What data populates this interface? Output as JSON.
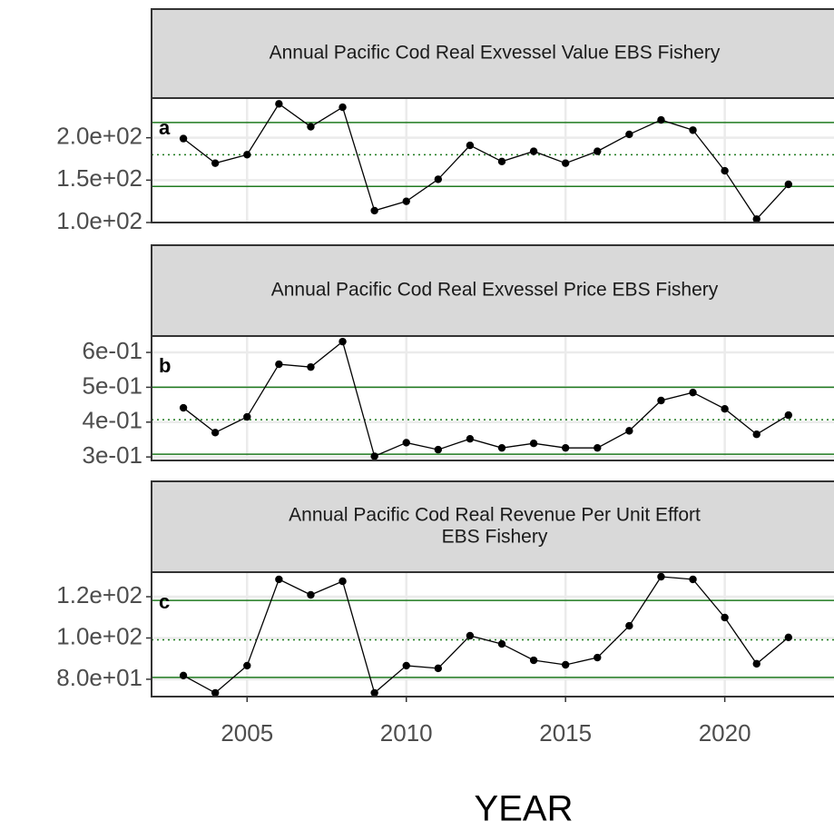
{
  "chart_data": [
    {
      "type": "line",
      "title": [
        "Annual Pacific Cod Real Exvessel Value EBS Fishery"
      ],
      "annotation": "a",
      "x": [
        2003,
        2004,
        2005,
        2006,
        2007,
        2008,
        2009,
        2010,
        2011,
        2012,
        2013,
        2014,
        2015,
        2016,
        2017,
        2018,
        2019,
        2020,
        2021,
        2022
      ],
      "series": [
        {
          "color": "#000000",
          "values": [
            199,
            170,
            180,
            240,
            213,
            236,
            114,
            125,
            151,
            191,
            172,
            184,
            170,
            184,
            204,
            221,
            209,
            161,
            104,
            145
          ]
        }
      ],
      "reference_lines": [
        {
          "value": 218,
          "style": "solid",
          "color": "#1f7a1f"
        },
        {
          "value": 142.6,
          "style": "solid",
          "color": "#1f7a1f"
        },
        {
          "value": 180,
          "style": "dotted",
          "color": "#1f7a1f"
        }
      ],
      "xlim": [
        2002,
        2023.43
      ],
      "xticks": [
        2005,
        2010,
        2015,
        2020
      ],
      "ylim": [
        100,
        246.8
      ],
      "yticks": [
        {
          "value": 100,
          "label": "1.0e+02"
        },
        {
          "value": 150,
          "label": "1.5e+02"
        },
        {
          "value": 200,
          "label": "2.0e+02"
        }
      ],
      "grid": true
    },
    {
      "type": "line",
      "title": [
        "Annual Pacific Cod Real Exvessel Price EBS Fishery"
      ],
      "annotation": "b",
      "x": [
        2003,
        2004,
        2005,
        2006,
        2007,
        2008,
        2009,
        2010,
        2011,
        2012,
        2013,
        2014,
        2015,
        2016,
        2017,
        2018,
        2019,
        2020,
        2021,
        2022
      ],
      "series": [
        {
          "color": "#000000",
          "values": [
            0.441,
            0.37,
            0.415,
            0.566,
            0.558,
            0.631,
            0.302,
            0.341,
            0.321,
            0.352,
            0.326,
            0.339,
            0.326,
            0.326,
            0.375,
            0.462,
            0.485,
            0.438,
            0.365,
            0.42
          ]
        }
      ],
      "reference_lines": [
        {
          "value": 0.5,
          "style": "solid",
          "color": "#1f7a1f"
        },
        {
          "value": 0.308,
          "style": "solid",
          "color": "#1f7a1f"
        },
        {
          "value": 0.407,
          "style": "dotted",
          "color": "#1f7a1f"
        }
      ],
      "xlim": [
        2002,
        2023.43
      ],
      "xticks": [
        2005,
        2010,
        2015,
        2020
      ],
      "ylim": [
        0.29,
        0.647
      ],
      "yticks": [
        {
          "value": 0.3,
          "label": "3e-01"
        },
        {
          "value": 0.4,
          "label": "4e-01"
        },
        {
          "value": 0.5,
          "label": "5e-01"
        },
        {
          "value": 0.6,
          "label": "6e-01"
        }
      ],
      "grid": true
    },
    {
      "type": "line",
      "title": [
        "Annual Pacific Cod Real Revenue Per Unit Effort",
        "EBS Fishery"
      ],
      "annotation": "c",
      "x": [
        2003,
        2004,
        2005,
        2006,
        2007,
        2008,
        2009,
        2010,
        2011,
        2012,
        2013,
        2014,
        2015,
        2016,
        2017,
        2018,
        2019,
        2020,
        2021,
        2022
      ],
      "series": [
        {
          "color": "#000000",
          "values": [
            81.8,
            73.4,
            86.6,
            128.4,
            120.9,
            127.5,
            73.4,
            86.6,
            85.3,
            101.1,
            97.1,
            89.2,
            87.0,
            90.5,
            105.9,
            129.7,
            128.4,
            109.9,
            87.5,
            100.3
          ]
        }
      ],
      "reference_lines": [
        {
          "value": 118.2,
          "style": "solid",
          "color": "#1f7a1f"
        },
        {
          "value": 80.9,
          "style": "solid",
          "color": "#1f7a1f"
        },
        {
          "value": 99.1,
          "style": "dotted",
          "color": "#1f7a1f"
        }
      ],
      "xlim": [
        2002,
        2023.43
      ],
      "xticks": [
        2005,
        2010,
        2015,
        2020
      ],
      "xlabel": "YEAR",
      "ylim": [
        71.6,
        131.9
      ],
      "yticks": [
        {
          "value": 80,
          "label": "8.0e+01"
        },
        {
          "value": 100,
          "label": "1.0e+02"
        },
        {
          "value": 120,
          "label": "1.2e+02"
        }
      ],
      "grid": true
    }
  ]
}
